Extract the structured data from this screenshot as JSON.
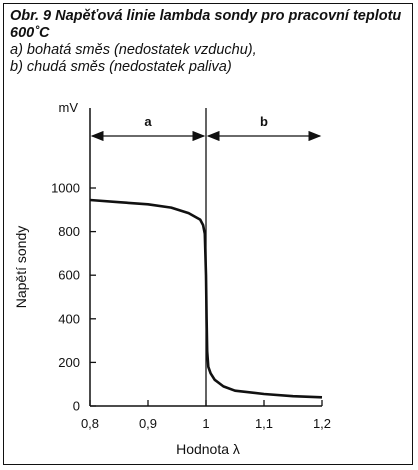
{
  "caption": {
    "title": "Obr. 9 Napěťová linie lambda sondy pro pracovní teplotu 600˚C",
    "line_a": "a) bohatá směs (nedostatek vzduchu),",
    "line_b": "b) chudá směs (nedostatek paliva)"
  },
  "chart_data": {
    "type": "line",
    "xlabel": "Hodnota λ",
    "ylabel": "Napětí sondy",
    "y_unit": "mV",
    "xlim": [
      0.8,
      1.2
    ],
    "ylim": [
      0,
      1000
    ],
    "x_ticks": [
      0.8,
      0.9,
      1.0,
      1.1,
      1.2
    ],
    "x_tick_labels": [
      "0,8",
      "0,9",
      "1",
      "1,1",
      "1,2"
    ],
    "y_ticks": [
      0,
      200,
      400,
      600,
      800,
      1000
    ],
    "y_tick_labels": [
      "0",
      "200",
      "400",
      "600",
      "800",
      "1000"
    ],
    "regions": [
      {
        "label": "a",
        "from": 0.8,
        "to": 1.0
      },
      {
        "label": "b",
        "from": 1.0,
        "to": 1.2
      }
    ],
    "series": [
      {
        "x": [
          0.8,
          0.85,
          0.9,
          0.94,
          0.97,
          0.99,
          0.995,
          0.998,
          1.0,
          1.001,
          1.002,
          1.004,
          1.008,
          1.015,
          1.03,
          1.05,
          1.1,
          1.15,
          1.2
        ],
        "y": [
          945,
          935,
          925,
          910,
          885,
          855,
          830,
          790,
          600,
          400,
          250,
          180,
          150,
          120,
          90,
          70,
          55,
          45,
          40
        ]
      }
    ]
  }
}
